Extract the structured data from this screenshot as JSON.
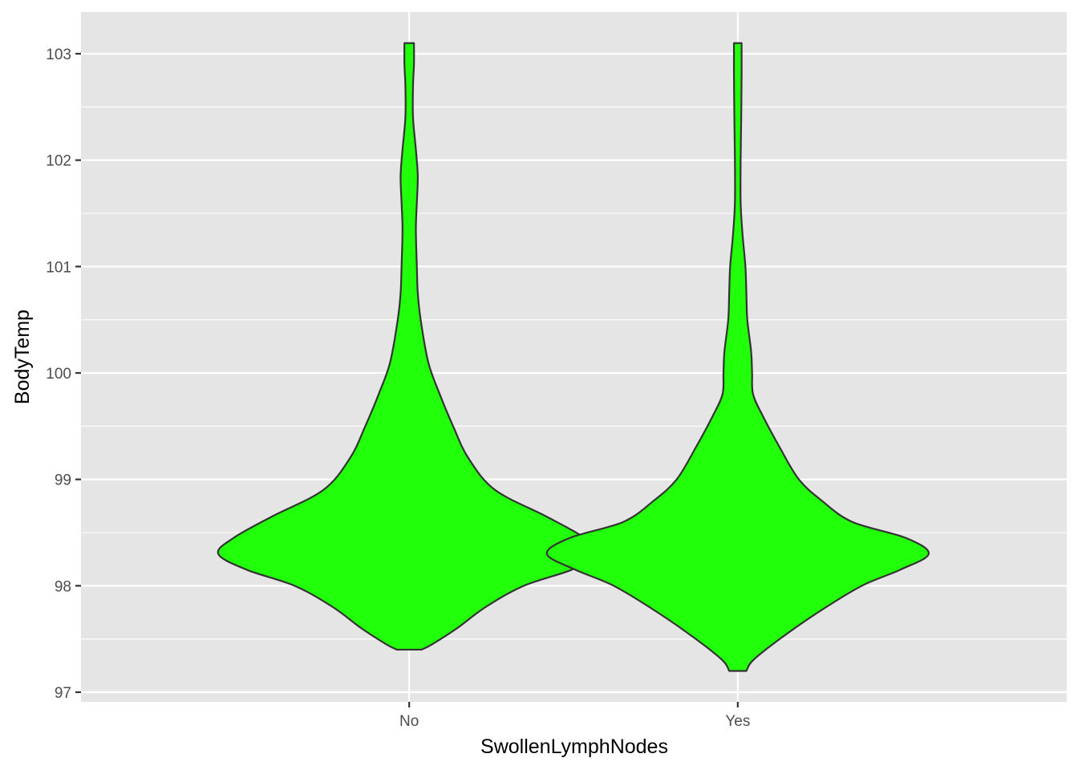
{
  "chart_data": {
    "type": "violin",
    "xlabel": "SwollenLymphNodes",
    "ylabel": "BodyTemp",
    "categories": [
      "No",
      "Yes"
    ],
    "ylim": [
      96.9,
      103.15
    ],
    "yticks": [
      97,
      98,
      99,
      100,
      101,
      102,
      103
    ],
    "grid": true,
    "fill_color": "#22FF0A",
    "outline_color": "#333333",
    "panel_color": "#E5E5E5",
    "grid_color": "#FFFFFF",
    "violins": [
      {
        "category": "No",
        "y_min": 97.4,
        "y_max": 103.1,
        "profile": [
          [
            97.4,
            0.065
          ],
          [
            97.45,
            0.12
          ],
          [
            97.6,
            0.25
          ],
          [
            97.8,
            0.4
          ],
          [
            98.0,
            0.6
          ],
          [
            98.15,
            0.85
          ],
          [
            98.3,
            1.0
          ],
          [
            98.45,
            0.92
          ],
          [
            98.65,
            0.72
          ],
          [
            98.9,
            0.45
          ],
          [
            99.2,
            0.31
          ],
          [
            99.5,
            0.23
          ],
          [
            99.8,
            0.16
          ],
          [
            100.1,
            0.1
          ],
          [
            100.5,
            0.06
          ],
          [
            100.75,
            0.045
          ],
          [
            101.0,
            0.04
          ],
          [
            101.35,
            0.035
          ],
          [
            101.6,
            0.04
          ],
          [
            101.85,
            0.045
          ],
          [
            102.1,
            0.035
          ],
          [
            102.4,
            0.02
          ],
          [
            102.7,
            0.02
          ],
          [
            102.9,
            0.025
          ],
          [
            103.1,
            0.025
          ]
        ]
      },
      {
        "category": "Yes",
        "y_min": 97.2,
        "y_max": 103.1,
        "profile": [
          [
            97.2,
            0.045
          ],
          [
            97.3,
            0.08
          ],
          [
            97.5,
            0.22
          ],
          [
            97.75,
            0.42
          ],
          [
            98.0,
            0.65
          ],
          [
            98.15,
            0.85
          ],
          [
            98.3,
            1.0
          ],
          [
            98.45,
            0.88
          ],
          [
            98.6,
            0.6
          ],
          [
            98.8,
            0.44
          ],
          [
            99.0,
            0.32
          ],
          [
            99.3,
            0.22
          ],
          [
            99.6,
            0.13
          ],
          [
            99.8,
            0.08
          ],
          [
            100.0,
            0.075
          ],
          [
            100.2,
            0.07
          ],
          [
            100.5,
            0.05
          ],
          [
            100.75,
            0.045
          ],
          [
            101.0,
            0.04
          ],
          [
            101.3,
            0.025
          ],
          [
            101.6,
            0.015
          ],
          [
            102.0,
            0.015
          ],
          [
            102.4,
            0.018
          ],
          [
            102.8,
            0.02
          ],
          [
            103.1,
            0.02
          ]
        ]
      }
    ]
  }
}
